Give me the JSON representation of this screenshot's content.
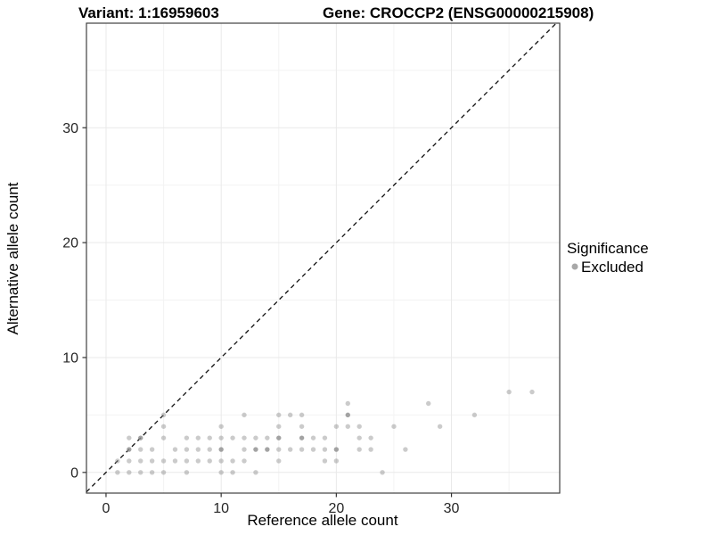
{
  "titles": {
    "variant": "Variant: 1:16959603",
    "gene": "Gene: CROCCP2 (ENSG00000215908)"
  },
  "colors": {
    "background": "#ffffff",
    "panel_border": "#404040",
    "grid_major": "#e9e9e9",
    "grid_minor": "#f3f3f3",
    "tick": "#333333",
    "tick_label": "#262626",
    "point": "#8c8c8c",
    "legend_point": "#a8a8a8",
    "reference_line": "#111111"
  },
  "legend": {
    "title": "Significance",
    "entries": [
      {
        "label": "Excluded",
        "color": "#a8a8a8"
      }
    ]
  },
  "chart_data": {
    "type": "scatter",
    "title_left": "Variant: 1:16959603",
    "title_right": "Gene: CROCCP2 (ENSG00000215908)",
    "xlabel": "Reference allele count",
    "ylabel": "Alternative allele count",
    "xlim": [
      -1.7,
      39.4
    ],
    "ylim": [
      -1.8,
      39.1
    ],
    "x_major_ticks": [
      0,
      10,
      20,
      30
    ],
    "y_major_ticks": [
      0,
      10,
      20,
      30
    ],
    "x_minor_ticks": [
      5,
      15,
      25,
      35
    ],
    "y_minor_ticks": [
      5,
      15,
      25,
      35
    ],
    "grid": true,
    "legend_position": "right",
    "reference_line": {
      "type": "identity",
      "slope": 1,
      "intercept": 0,
      "style": "dashed"
    },
    "series": [
      {
        "name": "Excluded",
        "color": "#8c8c8c",
        "points": [
          [
            1,
            0
          ],
          [
            2,
            0
          ],
          [
            3,
            0
          ],
          [
            4,
            0
          ],
          [
            5,
            0
          ],
          [
            7,
            0
          ],
          [
            10,
            0
          ],
          [
            11,
            0
          ],
          [
            13,
            0
          ],
          [
            24,
            0
          ],
          [
            1,
            1
          ],
          [
            2,
            1
          ],
          [
            3,
            1
          ],
          [
            4,
            1
          ],
          [
            5,
            1
          ],
          [
            6,
            1
          ],
          [
            7,
            1
          ],
          [
            8,
            1
          ],
          [
            9,
            1
          ],
          [
            10,
            1
          ],
          [
            11,
            1
          ],
          [
            12,
            1
          ],
          [
            15,
            1
          ],
          [
            19,
            1
          ],
          [
            20,
            1
          ],
          [
            2,
            2,
            2
          ],
          [
            3,
            2
          ],
          [
            4,
            2
          ],
          [
            6,
            2
          ],
          [
            7,
            2
          ],
          [
            8,
            2
          ],
          [
            9,
            2
          ],
          [
            10,
            2,
            2
          ],
          [
            12,
            2
          ],
          [
            13,
            2,
            2
          ],
          [
            14,
            2,
            2
          ],
          [
            15,
            2
          ],
          [
            16,
            2
          ],
          [
            17,
            2
          ],
          [
            18,
            2
          ],
          [
            19,
            2
          ],
          [
            20,
            2,
            2
          ],
          [
            22,
            2
          ],
          [
            23,
            2
          ],
          [
            26,
            2
          ],
          [
            2,
            3
          ],
          [
            3,
            3,
            2
          ],
          [
            5,
            3
          ],
          [
            7,
            3
          ],
          [
            8,
            3
          ],
          [
            9,
            3
          ],
          [
            10,
            3
          ],
          [
            11,
            3
          ],
          [
            12,
            3
          ],
          [
            13,
            3
          ],
          [
            14,
            3
          ],
          [
            15,
            3,
            2
          ],
          [
            17,
            3,
            2
          ],
          [
            18,
            3
          ],
          [
            19,
            3
          ],
          [
            22,
            3
          ],
          [
            23,
            3
          ],
          [
            5,
            4
          ],
          [
            10,
            4
          ],
          [
            15,
            4
          ],
          [
            17,
            4
          ],
          [
            20,
            4
          ],
          [
            21,
            4
          ],
          [
            22,
            4
          ],
          [
            25,
            4
          ],
          [
            29,
            4
          ],
          [
            5,
            5
          ],
          [
            12,
            5
          ],
          [
            15,
            5
          ],
          [
            16,
            5
          ],
          [
            17,
            5
          ],
          [
            21,
            5,
            2
          ],
          [
            32,
            5
          ],
          [
            21,
            6
          ],
          [
            28,
            6
          ],
          [
            35,
            7
          ],
          [
            37,
            7
          ]
        ]
      }
    ]
  }
}
